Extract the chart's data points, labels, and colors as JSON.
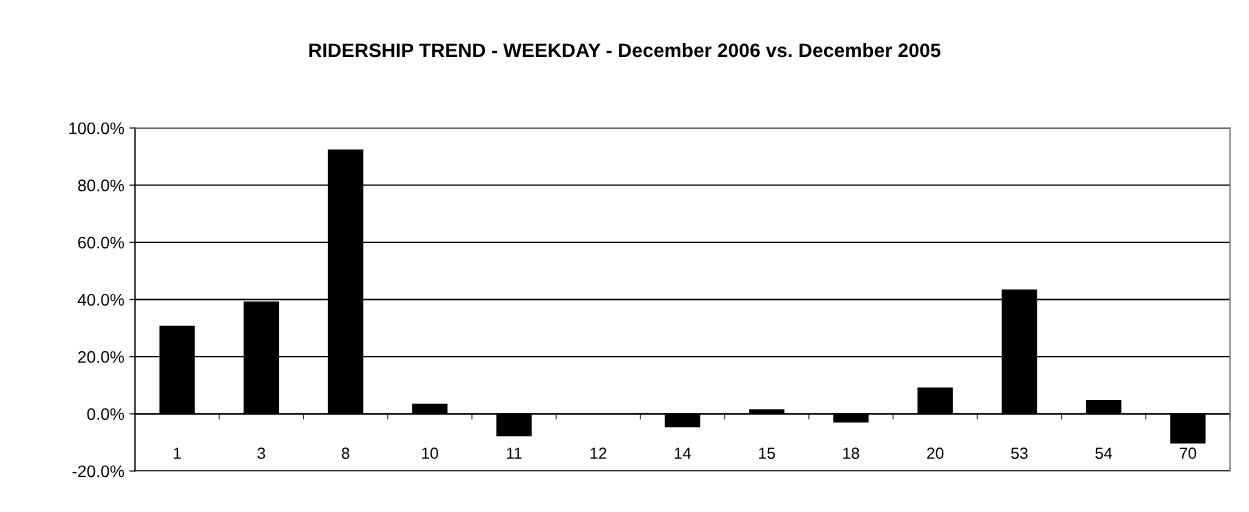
{
  "chart_data": {
    "type": "bar",
    "title": "RIDERSHIP TREND - WEEKDAY - December 2006 vs. December 2005",
    "categories": [
      "1",
      "3",
      "8",
      "10",
      "11",
      "12",
      "14",
      "15",
      "18",
      "20",
      "53",
      "54",
      "70"
    ],
    "values": [
      30.8,
      39.3,
      92.5,
      3.5,
      -7.8,
      0,
      -4.7,
      1.6,
      -3.0,
      9.2,
      43.5,
      4.8,
      -10.4
    ],
    "color": "#000000",
    "ylim": [
      -20,
      100
    ],
    "yticks": [
      {
        "value": -20,
        "label": "-20.0%"
      },
      {
        "value": 0,
        "label": "0.0%"
      },
      {
        "value": 20,
        "label": "20.0%"
      },
      {
        "value": 40,
        "label": "40.0%"
      },
      {
        "value": 60,
        "label": "60.0%"
      },
      {
        "value": 80,
        "label": "80.0%"
      },
      {
        "value": 100,
        "label": "100.0%"
      }
    ],
    "grid": "y"
  }
}
